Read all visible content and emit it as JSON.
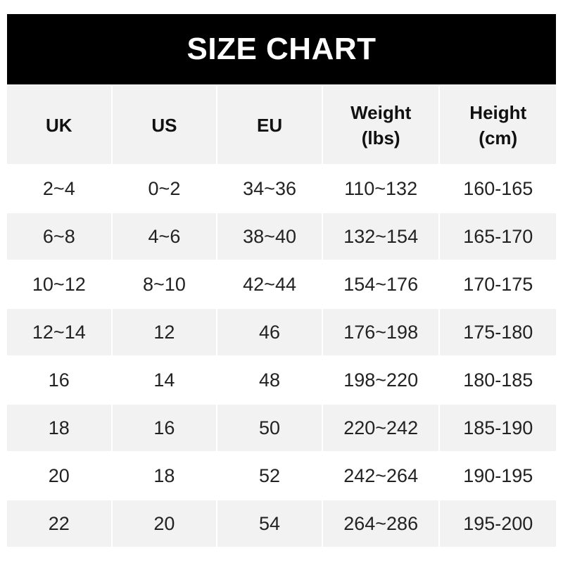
{
  "title": "SIZE CHART",
  "table": {
    "headers": [
      "UK",
      "US",
      "EU",
      "Weight\n(lbs)",
      "Height\n(cm)"
    ],
    "rows": [
      [
        "2~4",
        "0~2",
        "34~36",
        "110~132",
        "160-165"
      ],
      [
        "6~8",
        "4~6",
        "38~40",
        "132~154",
        "165-170"
      ],
      [
        "10~12",
        "8~10",
        "42~44",
        "154~176",
        "170-175"
      ],
      [
        "12~14",
        "12",
        "46",
        "176~198",
        "175-180"
      ],
      [
        "16",
        "14",
        "48",
        "198~220",
        "180-185"
      ],
      [
        "18",
        "16",
        "50",
        "220~242",
        "185-190"
      ],
      [
        "20",
        "18",
        "52",
        "242~264",
        "190-195"
      ],
      [
        "22",
        "20",
        "54",
        "264~286",
        "195-200"
      ]
    ]
  },
  "colors": {
    "header_bg": "#000000",
    "stripe": "#f2f2f2"
  }
}
